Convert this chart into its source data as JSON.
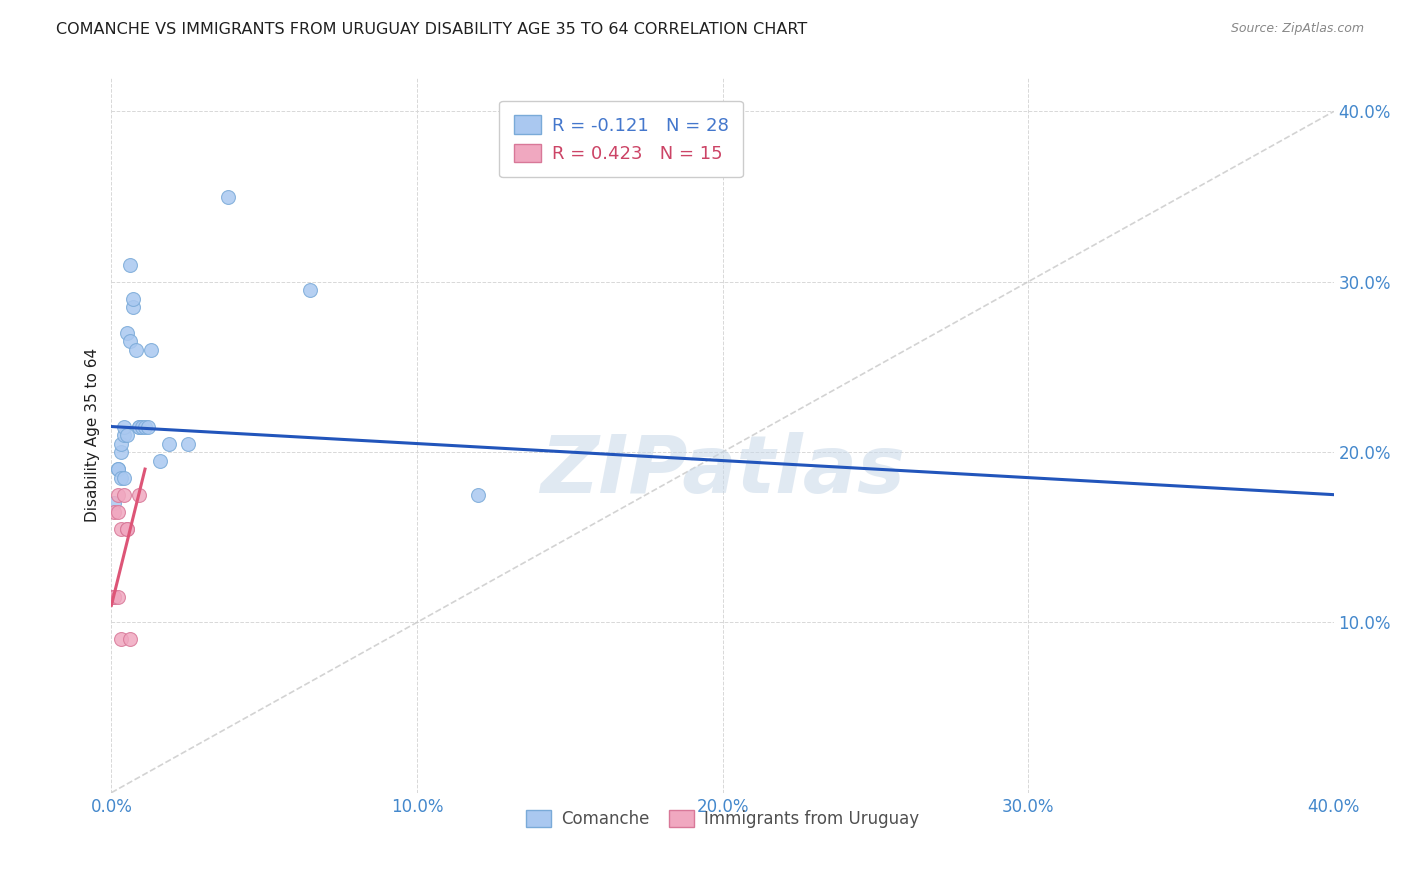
{
  "title": "COMANCHE VS IMMIGRANTS FROM URUGUAY DISABILITY AGE 35 TO 64 CORRELATION CHART",
  "source": "Source: ZipAtlas.com",
  "ylabel": "Disability Age 35 to 64",
  "xlim": [
    0.0,
    0.4
  ],
  "ylim": [
    0.0,
    0.42
  ],
  "xticks": [
    0.0,
    0.1,
    0.2,
    0.3,
    0.4
  ],
  "yticks": [
    0.1,
    0.2,
    0.3,
    0.4
  ],
  "xtick_labels": [
    "0.0%",
    "10.0%",
    "20.0%",
    "30.0%",
    "40.0%"
  ],
  "ytick_labels": [
    "10.0%",
    "20.0%",
    "30.0%",
    "40.0%"
  ],
  "comanche_x": [
    0.001,
    0.002,
    0.002,
    0.003,
    0.003,
    0.003,
    0.004,
    0.004,
    0.004,
    0.005,
    0.005,
    0.006,
    0.006,
    0.007,
    0.007,
    0.008,
    0.009,
    0.009,
    0.01,
    0.011,
    0.012,
    0.013,
    0.016,
    0.019,
    0.025,
    0.038,
    0.065,
    0.12
  ],
  "comanche_y": [
    0.17,
    0.19,
    0.19,
    0.2,
    0.205,
    0.185,
    0.185,
    0.21,
    0.215,
    0.21,
    0.27,
    0.265,
    0.31,
    0.285,
    0.29,
    0.26,
    0.215,
    0.215,
    0.215,
    0.215,
    0.215,
    0.26,
    0.195,
    0.205,
    0.205,
    0.35,
    0.295,
    0.175
  ],
  "uruguay_x": [
    0.0,
    0.0,
    0.001,
    0.001,
    0.001,
    0.002,
    0.002,
    0.002,
    0.003,
    0.003,
    0.004,
    0.005,
    0.005,
    0.006,
    0.009
  ],
  "uruguay_y": [
    0.115,
    0.115,
    0.115,
    0.115,
    0.165,
    0.115,
    0.165,
    0.175,
    0.09,
    0.155,
    0.175,
    0.155,
    0.155,
    0.09,
    0.175
  ],
  "comanche_color": "#aac8f0",
  "comanche_edgecolor": "#7aaad8",
  "uruguay_color": "#f0a8c0",
  "uruguay_edgecolor": "#d87898",
  "scatter_size": 100,
  "blue_line_color": "#2255bb",
  "pink_line_color": "#dd5577",
  "diagonal_color": "#c8c8c8",
  "grid_color": "#d8d8d8",
  "title_color": "#202020",
  "axis_label_color": "#202020",
  "tick_color": "#4488cc",
  "watermark": "ZIPatlas",
  "watermark_color": "#c8d8e8",
  "legend1_labels": [
    "R = -0.121   N = 28",
    "R = 0.423   N = 15"
  ],
  "legend1_colors": [
    "#4477cc",
    "#cc4466"
  ],
  "legend2_labels": [
    "Comanche",
    "Immigrants from Uruguay"
  ],
  "legend2_color": "#505050"
}
